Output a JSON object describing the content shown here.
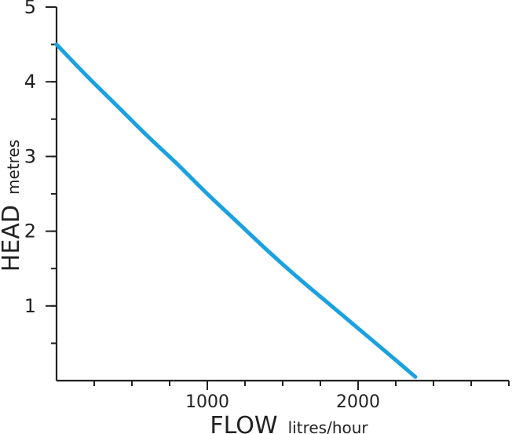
{
  "chart_data": {
    "type": "line",
    "xlabel": {
      "main": "FLOW",
      "unit": "litres/hour"
    },
    "ylabel": {
      "main": "HEAD",
      "unit": "metres"
    },
    "xlim": [
      0,
      3000
    ],
    "ylim": [
      0,
      5
    ],
    "x_ticks_major_labeled": [
      {
        "value": 1000,
        "label": "1000"
      },
      {
        "value": 2000,
        "label": "2000"
      }
    ],
    "x_minor_step": 250,
    "y_ticks_major_labeled": [
      {
        "value": 1,
        "label": "1"
      },
      {
        "value": 2,
        "label": "2"
      },
      {
        "value": 3,
        "label": "3"
      },
      {
        "value": 4,
        "label": "4"
      },
      {
        "value": 5,
        "label": "5"
      }
    ],
    "y_minor_step": 0.5,
    "grid": false,
    "series": [
      {
        "color": "#1aa1e0",
        "x": [
          0,
          200,
          400,
          600,
          800,
          1000,
          1200,
          1400,
          1600,
          1800,
          2000,
          2200,
          2380
        ],
        "y": [
          4.5,
          4.08,
          3.68,
          3.28,
          2.9,
          2.5,
          2.12,
          1.74,
          1.38,
          1.04,
          0.7,
          0.36,
          0.05
        ]
      }
    ]
  }
}
